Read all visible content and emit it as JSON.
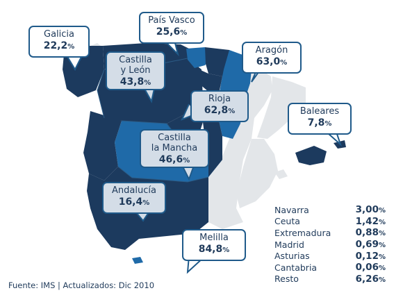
{
  "colors": {
    "dark_region": "#1c3a5e",
    "mid_region": "#1f6aa8",
    "other_land": "#e3e6e9",
    "border_line": "#2c5c86",
    "callout_border": "#1f5a8a",
    "light_callout": "#d4dde7",
    "text": "#1f3a5a"
  },
  "callouts": [
    {
      "id": "galicia",
      "name": "Galicia",
      "value": "22,2",
      "pct": "%"
    },
    {
      "id": "pais-vasco",
      "name": "País Vasco",
      "value": "25,6",
      "pct": "%"
    },
    {
      "id": "castilla-leon",
      "name": "Castilla y León",
      "value": "43,8",
      "pct": "%"
    },
    {
      "id": "aragon",
      "name": "Aragón",
      "value": "63,0",
      "pct": "%"
    },
    {
      "id": "rioja",
      "name": "Rioja",
      "value": "62,8",
      "pct": "%"
    },
    {
      "id": "baleares",
      "name": "Baleares",
      "value": "7,8",
      "pct": "%"
    },
    {
      "id": "castilla-mancha",
      "name": "Castilla la Mancha",
      "value": "46,6",
      "pct": "%"
    },
    {
      "id": "andalucia",
      "name": "Andalucía",
      "value": "16,4",
      "pct": "%"
    },
    {
      "id": "melilla",
      "name": "Melilla",
      "value": "84,8",
      "pct": "%"
    }
  ],
  "callout_name_lines": {
    "castilla-leon": [
      "Castilla",
      "y León"
    ],
    "castilla-mancha": [
      "Castilla",
      "la Mancha"
    ]
  },
  "other_regions": [
    {
      "name": "Navarra",
      "value": "3,00",
      "pct": "%"
    },
    {
      "name": "Ceuta",
      "value": "1,42",
      "pct": "%"
    },
    {
      "name": "Extremadura",
      "value": "0,88",
      "pct": "%"
    },
    {
      "name": "Madrid",
      "value": "0,69",
      "pct": "%"
    },
    {
      "name": "Asturias",
      "value": "0,12",
      "pct": "%"
    },
    {
      "name": "Cantabria",
      "value": "0,06",
      "pct": "%"
    },
    {
      "name": "Resto",
      "value": "6,26",
      "pct": "%"
    }
  ],
  "source_text": "Fuente: IMS  |  Actualizados: Dic 2010"
}
